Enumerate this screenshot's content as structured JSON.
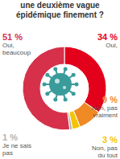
{
  "chart_data": {
    "type": "pie",
    "title": "une deuxième vague épidémique finement ?",
    "categories": [
      "Oui,",
      "Non, pas vraiment",
      "Non, pas du tout",
      "Je ne sais pas",
      "Oui, beaucoup"
    ],
    "values": [
      34,
      9,
      3,
      1,
      51
    ],
    "value_labels": [
      "34 %",
      "9 %",
      "3 %",
      "1 %",
      "51 %"
    ],
    "colors": [
      "#e3001b",
      "#f08a24",
      "#f5c400",
      "#b3b3b3",
      "#d6304a"
    ],
    "data_labels": true
  }
}
